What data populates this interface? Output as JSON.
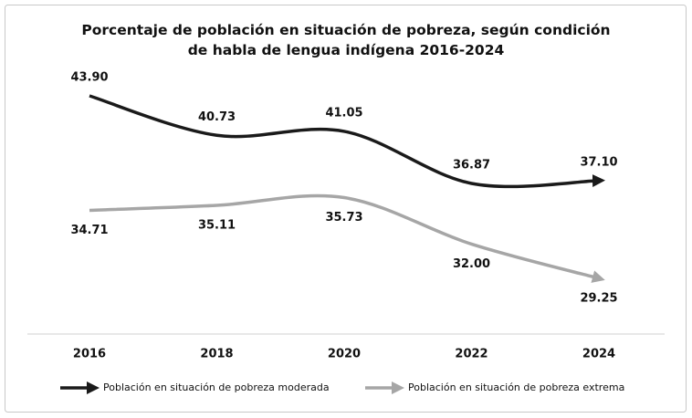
{
  "chart_data": {
    "type": "line",
    "title": "Porcentaje de población en situación de pobreza, según condición de habla de lengua indígena 2016-2024",
    "categories": [
      "2016",
      "2018",
      "2020",
      "2022",
      "2024"
    ],
    "series": [
      {
        "name": "Población en situación de pobreza moderada",
        "color": "#1a1a1a",
        "values": [
          43.9,
          40.73,
          41.05,
          36.87,
          37.1
        ],
        "value_labels": [
          "43.90",
          "40.73",
          "41.05",
          "36.87",
          "37.10"
        ]
      },
      {
        "name": "Población en situación de pobreza extrema",
        "color": "#a6a6a6",
        "values": [
          34.71,
          35.11,
          35.73,
          32.0,
          29.25
        ],
        "value_labels": [
          "34.71",
          "35.11",
          "35.73",
          "32.00",
          "29.25"
        ]
      }
    ]
  }
}
